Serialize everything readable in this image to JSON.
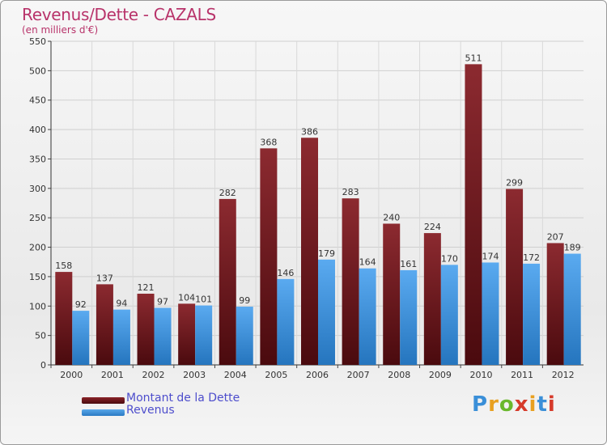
{
  "chart_data": {
    "type": "bar",
    "title": "Revenus/Dette - CAZALS",
    "subtitle": "(en milliers d'€)",
    "xlabel": "",
    "ylabel": "",
    "ylim": [
      0,
      550
    ],
    "yticks": [
      0,
      50,
      100,
      150,
      200,
      250,
      300,
      350,
      400,
      450,
      500,
      550
    ],
    "grid": true,
    "categories": [
      "2000",
      "2001",
      "2002",
      "2003",
      "2004",
      "2005",
      "2006",
      "2007",
      "2008",
      "2009",
      "2010",
      "2011",
      "2012"
    ],
    "series": [
      {
        "name": "Montant de la Dette",
        "color": "#7a1a1f",
        "values": [
          158,
          137,
          121,
          104,
          282,
          368,
          386,
          283,
          240,
          224,
          511,
          299,
          207
        ]
      },
      {
        "name": "Revenus",
        "color": "#3a90d8",
        "values": [
          92,
          94,
          97,
          101,
          99,
          146,
          179,
          164,
          161,
          170,
          174,
          172,
          189
        ]
      }
    ],
    "legend_position": "bottom-left"
  },
  "logo": {
    "text": "Proxiti",
    "colors": [
      "#3a8fd8",
      "#e8a020",
      "#6ab82c",
      "#d63a2a",
      "#e8a020",
      "#3a8fd8",
      "#d63a2a"
    ]
  }
}
